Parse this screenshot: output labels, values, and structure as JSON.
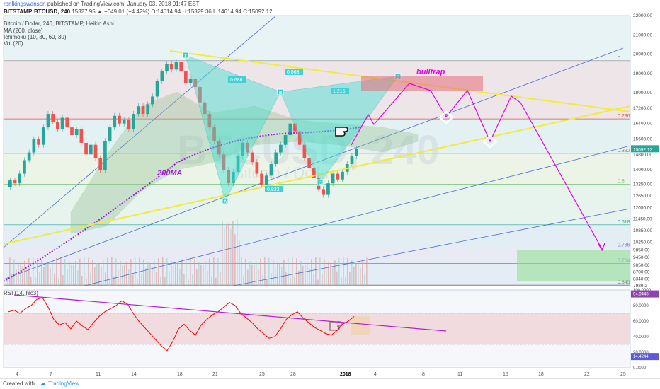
{
  "header": {
    "author": "ronlkingswanson",
    "published": "published on TradingView.com, January 03, 2018 01:47 EST",
    "symbol_line": "BITSTAMP:BTCUSD, 240",
    "ohlc": "15327.95 ▲ +649.01 (+4.42%) O:14614.94 H:15329.36 L:14614.94 C:15092.12",
    "title": "Bitcoin / Dollar, 240, BITSTAMP, Heikin Ashi",
    "studies": [
      "MA (200, close)",
      "Ichimoku (10, 30, 60, 30)",
      "Vol (20)"
    ],
    "rsi_label": "RSI (14, hlc3)"
  },
  "watermark": {
    "big": "BTCUSD, 240",
    "sub": "Bitcoin / Dollar"
  },
  "annotations": {
    "ma_label": "200MA",
    "bulltrap": "bulltrap",
    "harmonic_points": [
      "X",
      "A",
      "B",
      "C",
      "D"
    ],
    "ratios": [
      "0.686",
      "0.868",
      "1.215",
      "0.833"
    ]
  },
  "footer": {
    "created_with": "Created with",
    "brand": "TradingView"
  },
  "colors": {
    "up": "#26a69a",
    "down": "#ef5350",
    "fib": "#b7d8e6",
    "harmonic": "#40e0d0",
    "trend": "#f2ea3c",
    "arrow": "#e600e6",
    "ma": "#9b1fd6",
    "rsi": "#ff0000"
  },
  "chart_data": [
    {
      "type": "line",
      "name": "price",
      "y_axis": {
        "min": 7989.2,
        "max": 22000,
        "ticks": [
          22000,
          21000,
          20000,
          19000,
          18000,
          17200,
          16400,
          15600,
          14800,
          14000,
          13250,
          12650,
          12050,
          11450,
          10850,
          10250,
          9850,
          9450,
          9050,
          8700,
          8340,
          7989.2
        ]
      },
      "x_axis": {
        "ticks": [
          "4",
          "7",
          "11",
          "14",
          "18",
          "21",
          "25",
          "28",
          "2018",
          "4",
          "8",
          "11",
          "15",
          "18",
          "22",
          "25"
        ]
      },
      "last_price": 15092.12,
      "last_badge": "15092.12",
      "fib_levels": [
        {
          "ratio": "0",
          "price": 19660
        },
        {
          "ratio": "0.236",
          "price": 16640
        },
        {
          "ratio": "0.382",
          "price": 14850
        },
        {
          "ratio": "0.5",
          "price": 13250
        },
        {
          "ratio": "0.618",
          "price": 11150
        },
        {
          "ratio": "0.786",
          "price": 9950
        },
        {
          "ratio": "0.764",
          "price": 9150
        },
        {
          "ratio": "0.845",
          "price": 8020
        }
      ],
      "candles": [
        [
          13100,
          13450
        ],
        [
          13450,
          13300
        ],
        [
          13300,
          13800
        ],
        [
          13800,
          14500
        ],
        [
          14500,
          14900
        ],
        [
          14900,
          15600
        ],
        [
          15600,
          15300
        ],
        [
          15300,
          16200
        ],
        [
          16200,
          16900
        ],
        [
          16900,
          16500
        ],
        [
          16500,
          16100
        ],
        [
          16100,
          16700
        ],
        [
          16700,
          16200
        ],
        [
          16200,
          15800
        ],
        [
          15800,
          16100
        ],
        [
          16100,
          15400
        ],
        [
          15400,
          14800
        ],
        [
          14800,
          15300
        ],
        [
          15300,
          14600
        ],
        [
          14600,
          14000
        ],
        [
          14000,
          15500
        ],
        [
          15500,
          16200
        ],
        [
          16200,
          16800
        ],
        [
          16800,
          16400
        ],
        [
          16400,
          16600
        ],
        [
          16600,
          16100
        ],
        [
          16100,
          16900
        ],
        [
          16900,
          17300
        ],
        [
          17300,
          16900
        ],
        [
          16900,
          17400
        ],
        [
          17400,
          17800
        ],
        [
          17800,
          18600
        ],
        [
          18600,
          19100
        ],
        [
          19100,
          19500
        ],
        [
          19500,
          19200
        ],
        [
          19200,
          19600
        ],
        [
          19600,
          19100
        ],
        [
          19100,
          18500
        ],
        [
          18500,
          18700
        ],
        [
          18700,
          18300
        ],
        [
          18300,
          17500
        ],
        [
          17500,
          16900
        ],
        [
          16900,
          16200
        ],
        [
          16200,
          15500
        ],
        [
          15500,
          14800
        ],
        [
          14800,
          14000
        ],
        [
          14000,
          13300
        ],
        [
          13300,
          13900
        ],
        [
          13900,
          14700
        ],
        [
          14700,
          15400
        ],
        [
          15400,
          14900
        ],
        [
          14900,
          14400
        ],
        [
          14400,
          13800
        ],
        [
          13800,
          13200
        ],
        [
          13200,
          13700
        ],
        [
          13700,
          14300
        ],
        [
          14300,
          14900
        ],
        [
          14900,
          15300
        ],
        [
          15300,
          15800
        ],
        [
          15800,
          16400
        ],
        [
          16400,
          16000
        ],
        [
          16000,
          15300
        ],
        [
          15300,
          14600
        ],
        [
          14600,
          14100
        ],
        [
          14100,
          13600
        ],
        [
          13600,
          13000
        ],
        [
          13000,
          12700
        ],
        [
          12700,
          13300
        ],
        [
          13300,
          13800
        ],
        [
          13800,
          13500
        ],
        [
          13500,
          13900
        ],
        [
          13900,
          14300
        ],
        [
          14300,
          14700
        ],
        [
          14700,
          15092
        ]
      ],
      "rsi": {
        "levels": [
          70,
          30
        ],
        "ticks": [
          "100.0000",
          "94.9448",
          "80.0000",
          "60.0000",
          "40.0000",
          "20.0000",
          "14.4244",
          "0.0000"
        ],
        "values": [
          72,
          74,
          70,
          76,
          80,
          88,
          90,
          78,
          62,
          55,
          58,
          50,
          60,
          54,
          49,
          58,
          66,
          72,
          76,
          80,
          86,
          82,
          70,
          60,
          52,
          44,
          36,
          28,
          22,
          34,
          50,
          56,
          48,
          42,
          55,
          62,
          68,
          72,
          78,
          84,
          80,
          70,
          64,
          58,
          50,
          44,
          38,
          40,
          50,
          62,
          68,
          72,
          64,
          58,
          52,
          48,
          44,
          42,
          48,
          56,
          60,
          66
        ]
      }
    }
  ]
}
